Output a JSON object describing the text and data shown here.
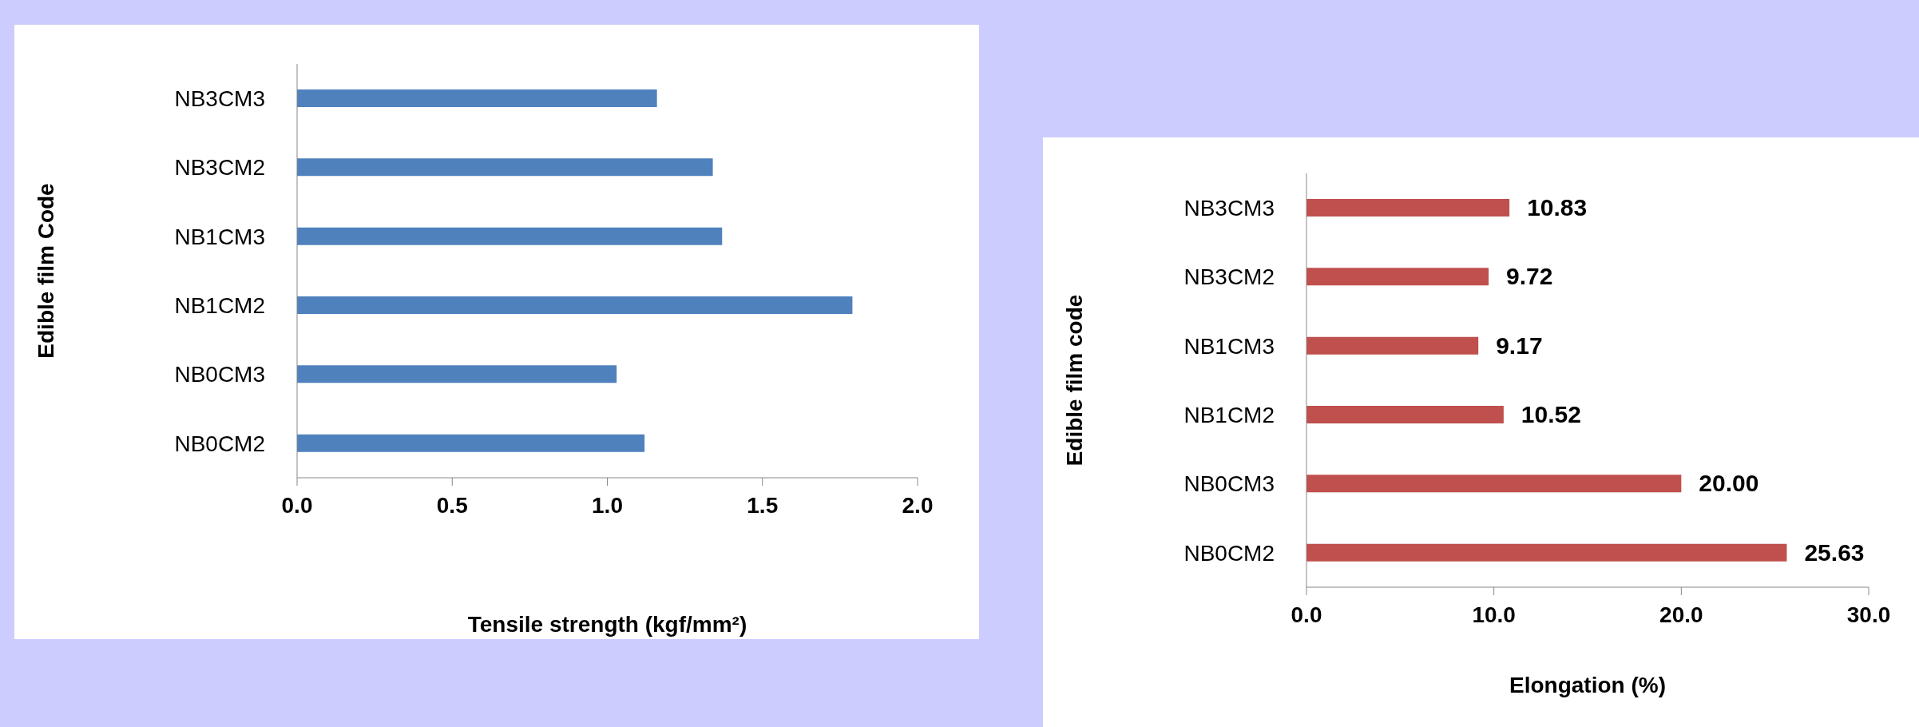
{
  "chart_data": [
    {
      "type": "bar",
      "orientation": "horizontal",
      "xlabel": "Tensile strength (kgf/mm²)",
      "ylabel": "Edible film Code",
      "categories": [
        "NB3CM3",
        "NB3CM2",
        "NB1CM3",
        "NB1CM2",
        "NB0CM3",
        "NB0CM2"
      ],
      "values": [
        1.16,
        1.34,
        1.37,
        1.79,
        1.03,
        1.12
      ],
      "color": "#4f81bd",
      "xlim": [
        0,
        2
      ],
      "xticks": [
        {
          "value": 0,
          "label": "0.0"
        },
        {
          "value": 0.5,
          "label": "0.5"
        },
        {
          "value": 1,
          "label": "1.0"
        },
        {
          "value": 1.5,
          "label": "1.5"
        },
        {
          "value": 2,
          "label": "2.0"
        }
      ]
    },
    {
      "type": "bar",
      "orientation": "horizontal",
      "xlabel": "Elongation (%)",
      "ylabel": "Edible film code",
      "categories": [
        "NB3CM3",
        "NB3CM2",
        "NB1CM3",
        "NB1CM2",
        "NB0CM3",
        "NB0CM2"
      ],
      "values": [
        10.83,
        9.72,
        9.17,
        10.52,
        20.0,
        25.63
      ],
      "value_labels": [
        "10.83",
        "9.72",
        "9.17",
        "10.52",
        "20.00",
        "25.63"
      ],
      "color": "#c0504d",
      "xlim": [
        0,
        30
      ],
      "xticks": [
        {
          "value": 0,
          "label": "0.0"
        },
        {
          "value": 10,
          "label": "10.0"
        },
        {
          "value": 20,
          "label": "20.0"
        },
        {
          "value": 30,
          "label": "30.0"
        }
      ]
    }
  ]
}
